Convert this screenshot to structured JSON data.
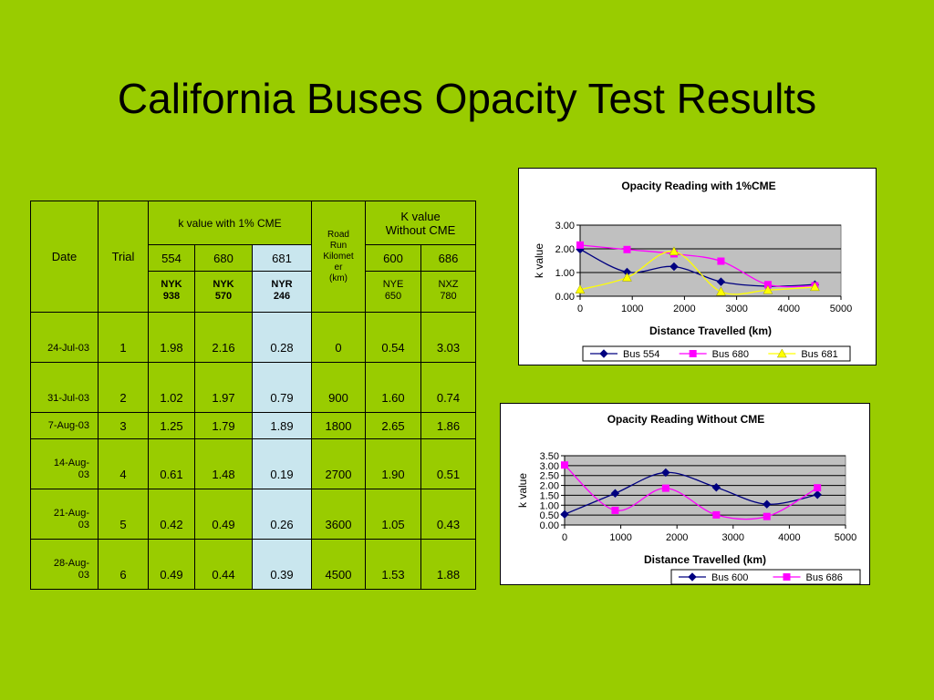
{
  "slide": {
    "title": "California Buses Opacity Test Results"
  },
  "table": {
    "headers": {
      "date": "Date",
      "trial": "Trial",
      "group_with": "k value with 1% CME",
      "road_run": "Road Run Kilometer (km)",
      "road_run_lines": [
        "Road",
        "Run",
        "Kilomet",
        "er",
        "(km)"
      ],
      "group_without": "K value Without CME",
      "group_without_lines": [
        "K value",
        "Without CME"
      ],
      "bus_ids": [
        "554",
        "680",
        "681",
        "600",
        "686"
      ],
      "plate_lines": [
        [
          "NYK",
          "938"
        ],
        [
          "NYK",
          "570"
        ],
        [
          "NYR",
          "246"
        ],
        [
          "NYE",
          "650"
        ],
        [
          "NXZ",
          "780"
        ]
      ]
    },
    "rows": [
      {
        "date": [
          "24-Jul-03"
        ],
        "trial": "1",
        "v554": "1.98",
        "v680": "2.16",
        "v681": "0.28",
        "km": "0",
        "v600": "0.54",
        "v686": "3.03"
      },
      {
        "date": [
          "31-Jul-03"
        ],
        "trial": "2",
        "v554": "1.02",
        "v680": "1.97",
        "v681": "0.79",
        "km": "900",
        "v600": "1.60",
        "v686": "0.74"
      },
      {
        "date": [
          "7-Aug-03"
        ],
        "trial": "3",
        "v554": "1.25",
        "v680": "1.79",
        "v681": "1.89",
        "km": "1800",
        "v600": "2.65",
        "v686": "1.86"
      },
      {
        "date": [
          "14-Aug-",
          "03"
        ],
        "trial": "4",
        "v554": "0.61",
        "v680": "1.48",
        "v681": "0.19",
        "km": "2700",
        "v600": "1.90",
        "v686": "0.51"
      },
      {
        "date": [
          "21-Aug-",
          "03"
        ],
        "trial": "5",
        "v554": "0.42",
        "v680": "0.49",
        "v681": "0.26",
        "km": "3600",
        "v600": "1.05",
        "v686": "0.43"
      },
      {
        "date": [
          "28-Aug-",
          "03"
        ],
        "trial": "6",
        "v554": "0.49",
        "v680": "0.44",
        "v681": "0.39",
        "km": "4500",
        "v600": "1.53",
        "v686": "1.88"
      }
    ]
  },
  "chart_data": [
    {
      "type": "line",
      "title": "Opacity Reading with 1%CME",
      "xlabel": "Distance Travelled (km)",
      "ylabel": "k value",
      "xlim": [
        0,
        5000
      ],
      "ylim": [
        0,
        3
      ],
      "xticks": [
        0,
        1000,
        2000,
        3000,
        4000,
        5000
      ],
      "yticks": [
        "0.00",
        "1.00",
        "2.00",
        "3.00"
      ],
      "x": [
        0,
        900,
        1800,
        2700,
        3600,
        4500
      ],
      "plot_background": "#c0c0c0",
      "grid": true,
      "legend_position": "bottom",
      "series": [
        {
          "name": "Bus 554",
          "values": [
            1.98,
            1.02,
            1.25,
            0.61,
            0.42,
            0.49
          ],
          "color": "#000080",
          "marker": "diamond"
        },
        {
          "name": "Bus 680",
          "values": [
            2.16,
            1.97,
            1.79,
            1.48,
            0.49,
            0.44
          ],
          "color": "#ff00ff",
          "marker": "square"
        },
        {
          "name": "Bus 681",
          "values": [
            0.28,
            0.79,
            1.89,
            0.19,
            0.26,
            0.39
          ],
          "color": "#ffff00",
          "marker": "triangle"
        }
      ]
    },
    {
      "type": "line",
      "title": "Opacity Reading Without CME",
      "xlabel": "Distance Travelled (km)",
      "ylabel": "k value",
      "xlim": [
        0,
        5000
      ],
      "ylim": [
        0,
        3.5
      ],
      "xticks": [
        0,
        1000,
        2000,
        3000,
        4000,
        5000
      ],
      "yticks": [
        "0.00",
        "0.50",
        "1.00",
        "1.50",
        "2.00",
        "2.50",
        "3.00",
        "3.50"
      ],
      "x": [
        0,
        900,
        1800,
        2700,
        3600,
        4500
      ],
      "plot_background": "#c0c0c0",
      "grid": true,
      "legend_position": "bottom",
      "series": [
        {
          "name": "Bus 600",
          "values": [
            0.54,
            1.6,
            2.65,
            1.9,
            1.05,
            1.53
          ],
          "color": "#000080",
          "marker": "diamond"
        },
        {
          "name": "Bus 686",
          "values": [
            3.03,
            0.74,
            1.86,
            0.51,
            0.43,
            1.88
          ],
          "color": "#ff00ff",
          "marker": "square"
        }
      ]
    }
  ]
}
